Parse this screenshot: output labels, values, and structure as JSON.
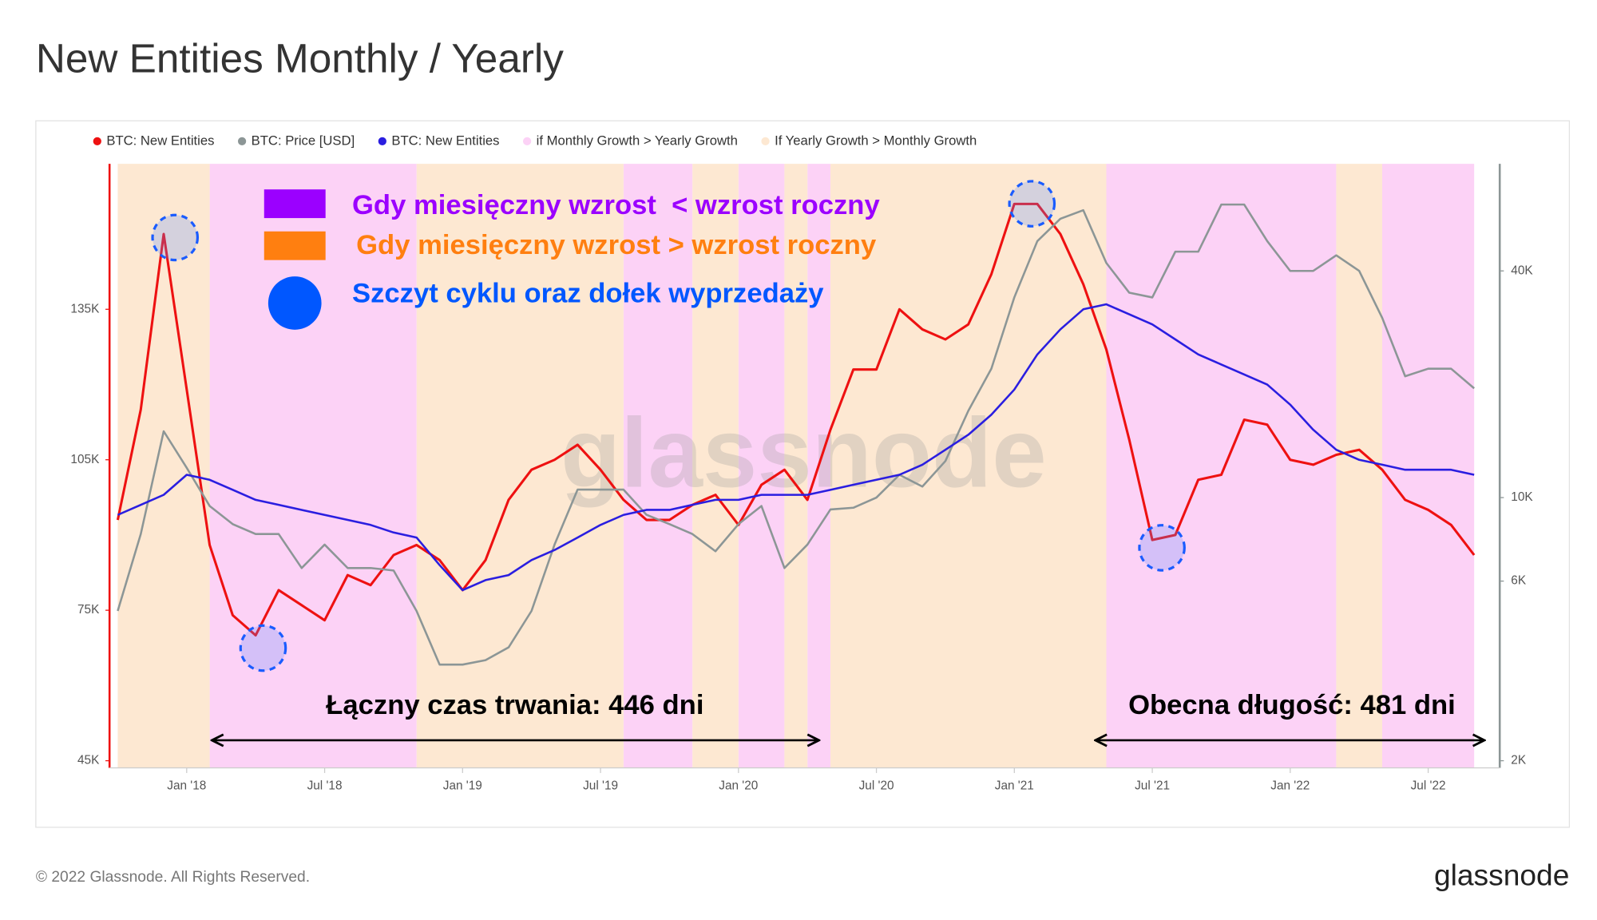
{
  "chart_data": {
    "type": "line",
    "title": "New Entities Monthly / Yearly",
    "x": [
      "2017-10",
      "2017-11",
      "2017-12",
      "2018-01",
      "2018-02",
      "2018-03",
      "2018-04",
      "2018-05",
      "2018-06",
      "2018-07",
      "2018-08",
      "2018-09",
      "2018-10",
      "2018-11",
      "2018-12",
      "2019-01",
      "2019-02",
      "2019-03",
      "2019-04",
      "2019-05",
      "2019-06",
      "2019-07",
      "2019-08",
      "2019-09",
      "2019-10",
      "2019-11",
      "2019-12",
      "2020-01",
      "2020-02",
      "2020-03",
      "2020-04",
      "2020-05",
      "2020-06",
      "2020-07",
      "2020-08",
      "2020-09",
      "2020-10",
      "2020-11",
      "2020-12",
      "2021-01",
      "2021-02",
      "2021-03",
      "2021-04",
      "2021-05",
      "2021-06",
      "2021-07",
      "2021-08",
      "2021-09",
      "2021-10",
      "2021-11",
      "2021-12",
      "2022-01",
      "2022-02",
      "2022-03",
      "2022-04",
      "2022-05",
      "2022-06",
      "2022-07",
      "2022-08",
      "2022-09"
    ],
    "xlim": [
      "2017-10",
      "2022-09"
    ],
    "xticks": [
      {
        "value": "2018-01",
        "label": "Jan '18"
      },
      {
        "value": "2018-07",
        "label": "Jul '18"
      },
      {
        "value": "2019-01",
        "label": "Jan '19"
      },
      {
        "value": "2019-07",
        "label": "Jul '19"
      },
      {
        "value": "2020-01",
        "label": "Jan '20"
      },
      {
        "value": "2020-07",
        "label": "Jul '20"
      },
      {
        "value": "2021-01",
        "label": "Jan '21"
      },
      {
        "value": "2021-07",
        "label": "Jul '21"
      },
      {
        "value": "2022-01",
        "label": "Jan '22"
      },
      {
        "value": "2022-07",
        "label": "Jul '22"
      }
    ],
    "ylim": [
      45000,
      164000
    ],
    "yticks": [
      {
        "value": 45000,
        "label": "45K"
      },
      {
        "value": 75000,
        "label": "75K"
      },
      {
        "value": 105000,
        "label": "105K"
      },
      {
        "value": 135000,
        "label": "135K"
      }
    ],
    "y2lim": [
      2000,
      77000
    ],
    "y2log": true,
    "y2ticks": [
      {
        "value": 2000,
        "label": "2K"
      },
      {
        "value": 6000,
        "label": "6K"
      },
      {
        "value": 10000,
        "label": "10K"
      },
      {
        "value": 40000,
        "label": "40K"
      }
    ],
    "series": [
      {
        "name": "BTC: New Entities",
        "color": "#ee1111",
        "values": [
          93000,
          115000,
          150000,
          119000,
          88000,
          74000,
          70000,
          79000,
          76000,
          73000,
          82000,
          80000,
          86000,
          88000,
          85000,
          79000,
          85000,
          97000,
          103000,
          105000,
          108000,
          103000,
          97000,
          93000,
          93000,
          96000,
          98000,
          92000,
          100000,
          103000,
          97000,
          111000,
          123000,
          123000,
          135000,
          131000,
          129000,
          132000,
          142000,
          156000,
          156000,
          150000,
          140000,
          127000,
          109000,
          89000,
          90000,
          101000,
          102000,
          113000,
          112000,
          105000,
          104000,
          106000,
          107000,
          103000,
          97000,
          95000,
          92000,
          86000
        ]
      },
      {
        "name": "BTC: Price [USD]",
        "color": "#8c9696",
        "axis": "y2",
        "values": [
          5000,
          8000,
          15000,
          12000,
          9500,
          8500,
          8000,
          8000,
          6500,
          7500,
          6500,
          6500,
          6400,
          5000,
          3600,
          3600,
          3700,
          4000,
          5000,
          7500,
          10500,
          10500,
          10500,
          9000,
          8500,
          8000,
          7200,
          8500,
          9500,
          6500,
          7500,
          9300,
          9400,
          10000,
          11500,
          10700,
          12500,
          17000,
          22000,
          34000,
          48000,
          55000,
          58000,
          42000,
          35000,
          34000,
          45000,
          45000,
          60000,
          60000,
          48000,
          40000,
          40000,
          44000,
          40000,
          30000,
          21000,
          22000,
          22000,
          19500
        ]
      },
      {
        "name": "BTC: New Entities",
        "color": "#2a1ee0",
        "values": [
          94000,
          96000,
          98000,
          102000,
          101000,
          99000,
          97000,
          96000,
          95000,
          94000,
          93000,
          92000,
          90500,
          89500,
          84000,
          79000,
          81000,
          82000,
          85000,
          87000,
          89500,
          92000,
          94000,
          95000,
          95000,
          96000,
          97000,
          97000,
          98000,
          98000,
          98000,
          99000,
          100000,
          101000,
          102000,
          104000,
          107000,
          110000,
          114000,
          119000,
          126000,
          131000,
          135000,
          136000,
          134000,
          132000,
          129000,
          126000,
          124000,
          122000,
          120000,
          116000,
          111000,
          107000,
          105000,
          104000,
          103000,
          103000,
          103000,
          102000
        ]
      },
      {
        "name": "if Monthly Growth > Yearly Growth",
        "color": "#fcd2f6",
        "ranges": [
          [
            "2018-02",
            "2018-11"
          ],
          [
            "2019-08",
            "2019-11"
          ],
          [
            "2020-01",
            "2020-03"
          ],
          [
            "2020-04",
            "2020-05"
          ],
          [
            "2021-05",
            "2022-03"
          ],
          [
            "2022-05",
            "2022-09"
          ]
        ]
      },
      {
        "name": "If Yearly Growth > Monthly Growth",
        "color": "#fde8d2",
        "ranges": [
          [
            "2017-10",
            "2018-02"
          ],
          [
            "2018-11",
            "2019-08"
          ],
          [
            "2019-11",
            "2020-01"
          ],
          [
            "2020-03",
            "2020-04"
          ],
          [
            "2020-05",
            "2021-05"
          ],
          [
            "2022-03",
            "2022-05"
          ]
        ]
      }
    ],
    "annotations": {
      "key": [
        {
          "text": "Gdy miesięczny wzrost  < wzrost roczny",
          "color": "#9b00ff"
        },
        {
          "text": "Gdy miesięczny wzrost > wzrost roczny",
          "color": "#ff7f10"
        },
        {
          "text": "Szczyt cyklu oraz dołek wyprzedaży",
          "color": "#0057ff"
        }
      ],
      "durations": [
        "Łączny czas trwania: 446 dni",
        "Obecna długość: 481 dni"
      ]
    },
    "watermark": "glassnode"
  },
  "footer": {
    "copyright": "© 2022 Glassnode. All Rights Reserved.",
    "brand": "glassnode"
  }
}
